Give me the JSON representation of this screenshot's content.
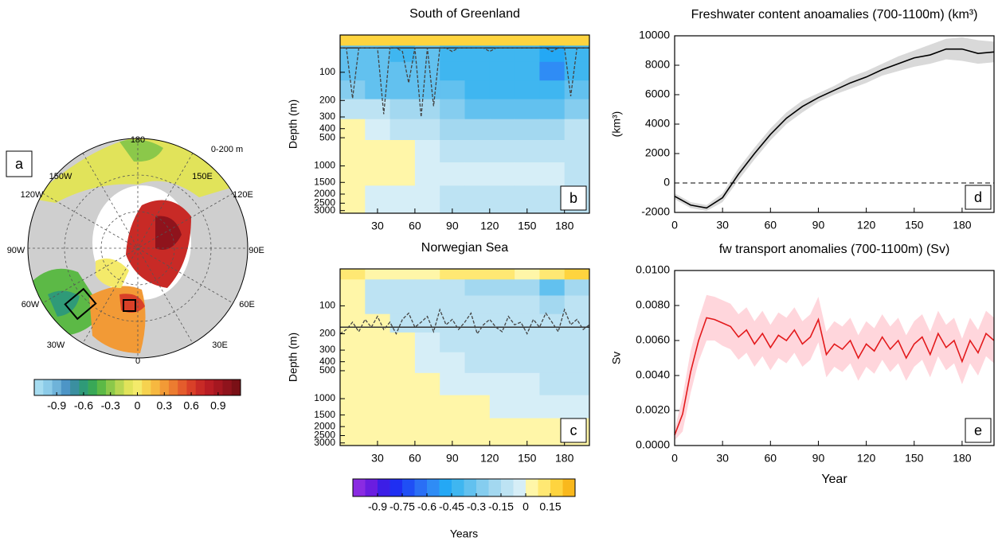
{
  "chart_data": [
    {
      "type": "map",
      "label": "a",
      "subtitle": "0-200 m",
      "lon_labels": [
        "180",
        "150W",
        "150E",
        "120W",
        "120E",
        "90W",
        "90E",
        "60W",
        "60E",
        "30W",
        "30E",
        "0"
      ],
      "colorbar": {
        "clim": [
          -1.15,
          1.15
        ],
        "ticks": [
          -0.9,
          -0.6,
          -0.3,
          0,
          0.3,
          0.6,
          0.9
        ],
        "colors": [
          "#a6dcf0",
          "#8ccbe8",
          "#6fb3d9",
          "#4d95c6",
          "#3b8fa0",
          "#2f9a78",
          "#39a857",
          "#5cb946",
          "#8bc84a",
          "#b8d652",
          "#e1e35a",
          "#f4ea6a",
          "#f6d24f",
          "#f6b840",
          "#f29a36",
          "#ec7c30",
          "#e45c2c",
          "#d94028",
          "#c82a26",
          "#b81d24",
          "#a51720",
          "#8f131c",
          "#7a1016"
        ]
      }
    },
    {
      "type": "heatmap",
      "title": "South of Greenland",
      "ylabel": "Depth (m)",
      "label": "b",
      "xlim": [
        0,
        200
      ],
      "xticks": [
        30,
        60,
        90,
        120,
        150,
        180
      ],
      "ylim": [
        40,
        3200
      ],
      "log_y": true,
      "invert_y": true,
      "yticks": [
        100,
        200,
        300,
        400,
        500,
        1000,
        1500,
        2000,
        2500,
        3000
      ],
      "x": [
        10,
        30,
        50,
        70,
        90,
        110,
        130,
        150,
        170,
        190
      ],
      "y": [
        45,
        60,
        100,
        150,
        250,
        400,
        700,
        1200,
        2200
      ],
      "values": [
        [
          0.15,
          0.15,
          0.15,
          0.15,
          0.15,
          0.15,
          0.15,
          0.15,
          0.15,
          0.15
        ],
        [
          -0.3,
          -0.35,
          -0.4,
          -0.35,
          -0.4,
          -0.45,
          -0.45,
          -0.45,
          -0.5,
          -0.4
        ],
        [
          -0.3,
          -0.35,
          -0.35,
          -0.3,
          -0.4,
          -0.45,
          -0.45,
          -0.45,
          -0.55,
          -0.4
        ],
        [
          -0.25,
          -0.3,
          -0.3,
          -0.3,
          -0.35,
          -0.4,
          -0.4,
          -0.4,
          -0.45,
          -0.35
        ],
        [
          -0.15,
          -0.15,
          -0.2,
          -0.2,
          -0.25,
          -0.3,
          -0.3,
          -0.3,
          -0.3,
          -0.25
        ],
        [
          0.02,
          -0.05,
          -0.1,
          -0.15,
          -0.2,
          -0.2,
          -0.2,
          -0.2,
          -0.2,
          -0.15
        ],
        [
          0.02,
          0.02,
          0.02,
          -0.05,
          -0.1,
          -0.1,
          -0.1,
          -0.1,
          -0.1,
          -0.1
        ],
        [
          0.03,
          0.02,
          0.02,
          -0.05,
          -0.05,
          -0.05,
          -0.05,
          -0.05,
          -0.05,
          -0.1
        ],
        [
          0.02,
          -0.05,
          -0.05,
          -0.05,
          -0.1,
          -0.1,
          -0.1,
          -0.1,
          -0.15,
          -0.15
        ]
      ],
      "hline": 55,
      "line_color": "#444444",
      "line_x": [
        0,
        5,
        10,
        15,
        20,
        25,
        30,
        35,
        40,
        45,
        50,
        55,
        60,
        65,
        70,
        75,
        80,
        85,
        90,
        95,
        100,
        105,
        110,
        115,
        120,
        125,
        130,
        135,
        140,
        145,
        150,
        155,
        160,
        165,
        170,
        175,
        180,
        185,
        190,
        195,
        200
      ],
      "line_values": [
        55,
        55,
        190,
        55,
        55,
        55,
        55,
        280,
        55,
        55,
        60,
        130,
        55,
        300,
        55,
        230,
        55,
        55,
        60,
        55,
        55,
        55,
        55,
        55,
        60,
        55,
        55,
        55,
        55,
        55,
        55,
        55,
        55,
        55,
        60,
        55,
        55,
        180,
        55,
        55,
        55
      ]
    },
    {
      "type": "heatmap",
      "title": "Norwegian Sea",
      "ylabel": "Depth (m)",
      "label": "c",
      "xlim": [
        0,
        200
      ],
      "xticks": [
        30,
        60,
        90,
        120,
        150,
        180
      ],
      "ylim": [
        40,
        3200
      ],
      "log_y": true,
      "invert_y": true,
      "yticks": [
        100,
        200,
        300,
        400,
        500,
        1000,
        1500,
        2000,
        2500,
        3000
      ],
      "x": [
        10,
        30,
        50,
        70,
        90,
        110,
        130,
        150,
        170,
        190
      ],
      "y": [
        45,
        60,
        100,
        150,
        250,
        400,
        700,
        1200,
        2200
      ],
      "values": [
        [
          0.1,
          0.05,
          0.05,
          0.05,
          0.1,
          0.1,
          0.1,
          0.05,
          0.1,
          0.15
        ],
        [
          0.05,
          -0.1,
          -0.15,
          -0.1,
          -0.15,
          -0.2,
          -0.2,
          -0.2,
          -0.3,
          -0.2
        ],
        [
          0.05,
          -0.1,
          -0.1,
          -0.1,
          -0.1,
          -0.15,
          -0.15,
          -0.15,
          -0.2,
          -0.15
        ],
        [
          0.05,
          0.02,
          -0.1,
          -0.1,
          -0.1,
          -0.1,
          -0.1,
          -0.1,
          -0.15,
          -0.1
        ],
        [
          0.05,
          0.05,
          0.02,
          -0.05,
          -0.1,
          -0.1,
          -0.1,
          -0.1,
          -0.1,
          -0.1
        ],
        [
          0.05,
          0.05,
          0.05,
          -0.05,
          -0.05,
          -0.1,
          -0.1,
          -0.1,
          -0.1,
          -0.1
        ],
        [
          0.05,
          0.05,
          0.05,
          0.02,
          -0.05,
          -0.05,
          -0.05,
          -0.05,
          -0.1,
          -0.1
        ],
        [
          0.02,
          0.02,
          0.02,
          0.02,
          0.02,
          0.02,
          -0.05,
          -0.05,
          -0.05,
          -0.05
        ],
        [
          0.02,
          0.02,
          0.02,
          0.02,
          0.02,
          0.02,
          0.02,
          0.02,
          0.02,
          0.02
        ]
      ],
      "hline": 170,
      "line_color": "#444444",
      "line_x": [
        0,
        5,
        10,
        15,
        20,
        25,
        30,
        35,
        40,
        45,
        50,
        55,
        60,
        65,
        70,
        75,
        80,
        85,
        90,
        95,
        100,
        105,
        110,
        115,
        120,
        125,
        130,
        135,
        140,
        145,
        150,
        155,
        160,
        165,
        170,
        175,
        180,
        185,
        190,
        195,
        200
      ],
      "line_values": [
        200,
        180,
        150,
        190,
        140,
        170,
        130,
        180,
        150,
        200,
        140,
        120,
        170,
        150,
        130,
        190,
        110,
        160,
        140,
        180,
        150,
        120,
        200,
        160,
        140,
        170,
        190,
        130,
        160,
        150,
        200,
        140,
        170,
        120,
        150,
        190,
        110,
        160,
        140,
        180,
        160
      ]
    },
    {
      "type": "line",
      "title": "Freshwater content anoamalies (700-1100m) (km³)",
      "ylabel": "(km³)",
      "label": "d",
      "xlim": [
        0,
        200
      ],
      "xticks": [
        0,
        30,
        60,
        90,
        120,
        150,
        180
      ],
      "ylim": [
        -2000,
        10000
      ],
      "yticks": [
        -2000,
        0,
        2000,
        4000,
        6000,
        8000,
        10000
      ],
      "hline": 0,
      "x": [
        0,
        10,
        20,
        30,
        40,
        50,
        60,
        70,
        80,
        90,
        100,
        110,
        120,
        130,
        140,
        150,
        160,
        170,
        180,
        190,
        200
      ],
      "series": [
        {
          "color": "#000000",
          "band_color": "#d9d9d9",
          "values": [
            -900,
            -1500,
            -1700,
            -1000,
            600,
            2000,
            3300,
            4400,
            5200,
            5800,
            6300,
            6800,
            7200,
            7700,
            8100,
            8500,
            8700,
            9100,
            9100,
            8800,
            8900
          ],
          "lower": [
            -1100,
            -1700,
            -1900,
            -1300,
            200,
            1600,
            2900,
            4000,
            4800,
            5500,
            6000,
            6400,
            6800,
            7300,
            7600,
            7900,
            8100,
            8400,
            8300,
            8100,
            8200
          ],
          "upper": [
            -700,
            -1300,
            -1500,
            -700,
            1000,
            2400,
            3700,
            4800,
            5600,
            6100,
            6600,
            7200,
            7600,
            8100,
            8600,
            9000,
            9400,
            9800,
            9900,
            9700,
            9600
          ]
        }
      ]
    },
    {
      "type": "line",
      "title": "fw transport anomalies (700-1100m) (Sv)",
      "ylabel": "Sv",
      "xlabel": "Year",
      "label": "e",
      "xlim": [
        0,
        200
      ],
      "xticks": [
        0,
        30,
        60,
        90,
        120,
        150,
        180
      ],
      "ylim": [
        0,
        0.01
      ],
      "yticks": [
        {
          "value": 0,
          "label": "0.0000"
        },
        {
          "value": 0.002,
          "label": "0.0020"
        },
        {
          "value": 0.004,
          "label": "0.0040"
        },
        {
          "value": 0.006,
          "label": "0.0060"
        },
        {
          "value": 0.008,
          "label": "0.0080"
        },
        {
          "value": 0.01,
          "label": "0.0100"
        }
      ],
      "x": [
        0,
        5,
        10,
        15,
        20,
        25,
        30,
        35,
        40,
        45,
        50,
        55,
        60,
        65,
        70,
        75,
        80,
        85,
        90,
        95,
        100,
        105,
        110,
        115,
        120,
        125,
        130,
        135,
        140,
        145,
        150,
        155,
        160,
        165,
        170,
        175,
        180,
        185,
        190,
        195,
        200
      ],
      "series": [
        {
          "color": "#e31a1c",
          "band_color": "#ffd6dc",
          "values": [
            0.0006,
            0.0018,
            0.0042,
            0.006,
            0.0073,
            0.0072,
            0.007,
            0.0068,
            0.0062,
            0.0066,
            0.0058,
            0.0064,
            0.0056,
            0.0063,
            0.006,
            0.0066,
            0.0058,
            0.0062,
            0.0072,
            0.0052,
            0.0058,
            0.0055,
            0.006,
            0.005,
            0.0058,
            0.0054,
            0.0062,
            0.0055,
            0.006,
            0.005,
            0.0058,
            0.0062,
            0.0052,
            0.0064,
            0.0056,
            0.006,
            0.0048,
            0.006,
            0.0053,
            0.0064,
            0.006
          ],
          "lower": [
            0.0003,
            0.0008,
            0.003,
            0.0048,
            0.006,
            0.006,
            0.0057,
            0.0055,
            0.0049,
            0.0053,
            0.0045,
            0.0051,
            0.0043,
            0.005,
            0.0047,
            0.0053,
            0.0045,
            0.0049,
            0.0059,
            0.0039,
            0.0045,
            0.0042,
            0.0047,
            0.0037,
            0.0045,
            0.0041,
            0.0049,
            0.0042,
            0.0047,
            0.0037,
            0.0045,
            0.0049,
            0.0039,
            0.0051,
            0.0043,
            0.0047,
            0.0035,
            0.0047,
            0.004,
            0.0051,
            0.0047
          ],
          "upper": [
            0.0009,
            0.0028,
            0.0054,
            0.0072,
            0.0086,
            0.0085,
            0.0083,
            0.0081,
            0.0075,
            0.0079,
            0.0071,
            0.0077,
            0.0069,
            0.0076,
            0.0073,
            0.0079,
            0.0071,
            0.0075,
            0.0085,
            0.0065,
            0.0071,
            0.0068,
            0.0073,
            0.0063,
            0.0071,
            0.0067,
            0.0075,
            0.0068,
            0.0073,
            0.0063,
            0.0071,
            0.0075,
            0.0065,
            0.0077,
            0.0069,
            0.0073,
            0.0061,
            0.0073,
            0.0066,
            0.0077,
            0.0073
          ]
        }
      ]
    },
    {
      "type": "colorbar",
      "label": "Years",
      "clim": [
        -1.05,
        0.3
      ],
      "ticks": [
        -0.9,
        -0.75,
        -0.6,
        -0.45,
        -0.3,
        -0.15,
        0,
        0.15
      ],
      "colors": [
        "#8a2be2",
        "#6a1de0",
        "#3c1ee6",
        "#1f2ff2",
        "#1f4ff5",
        "#2a6ff5",
        "#2f8cf5",
        "#24a8f5",
        "#3fb6f0",
        "#62c1ef",
        "#85cdef",
        "#a3d8f0",
        "#bde3f3",
        "#d6eef7",
        "#fff6a8",
        "#ffe873",
        "#fed43f",
        "#f9b81c"
      ]
    }
  ]
}
